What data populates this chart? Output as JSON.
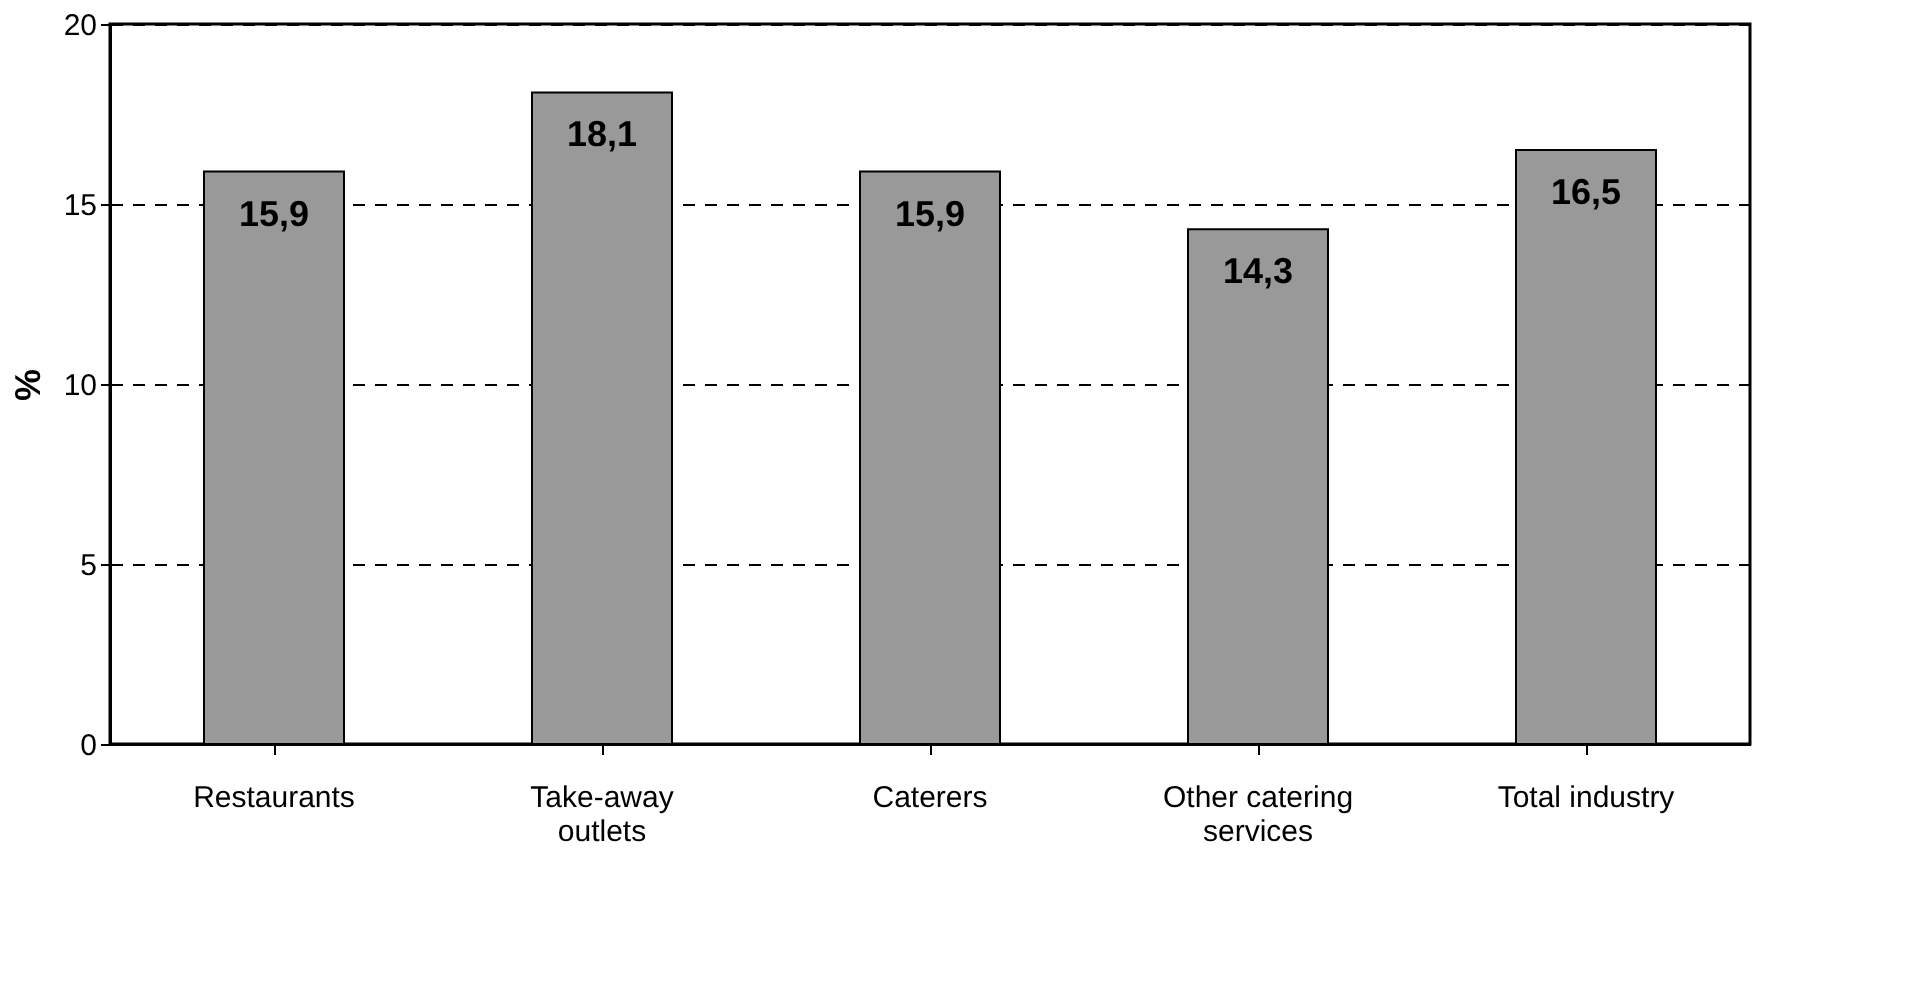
{
  "chart_data": {
    "type": "bar",
    "ylabel": "%",
    "categories": [
      "Restaurants",
      "Take-away outlets",
      "Caterers",
      "Other catering services",
      "Total industry"
    ],
    "values": [
      15.9,
      18.1,
      15.9,
      14.3,
      16.5
    ],
    "value_labels": [
      "15,9",
      "18,1",
      "15,9",
      "14,3",
      "16,5"
    ],
    "color": "#999999",
    "ylim": [
      0,
      20
    ],
    "yticks": [
      0,
      5,
      10,
      15,
      20
    ],
    "grid": "y"
  }
}
